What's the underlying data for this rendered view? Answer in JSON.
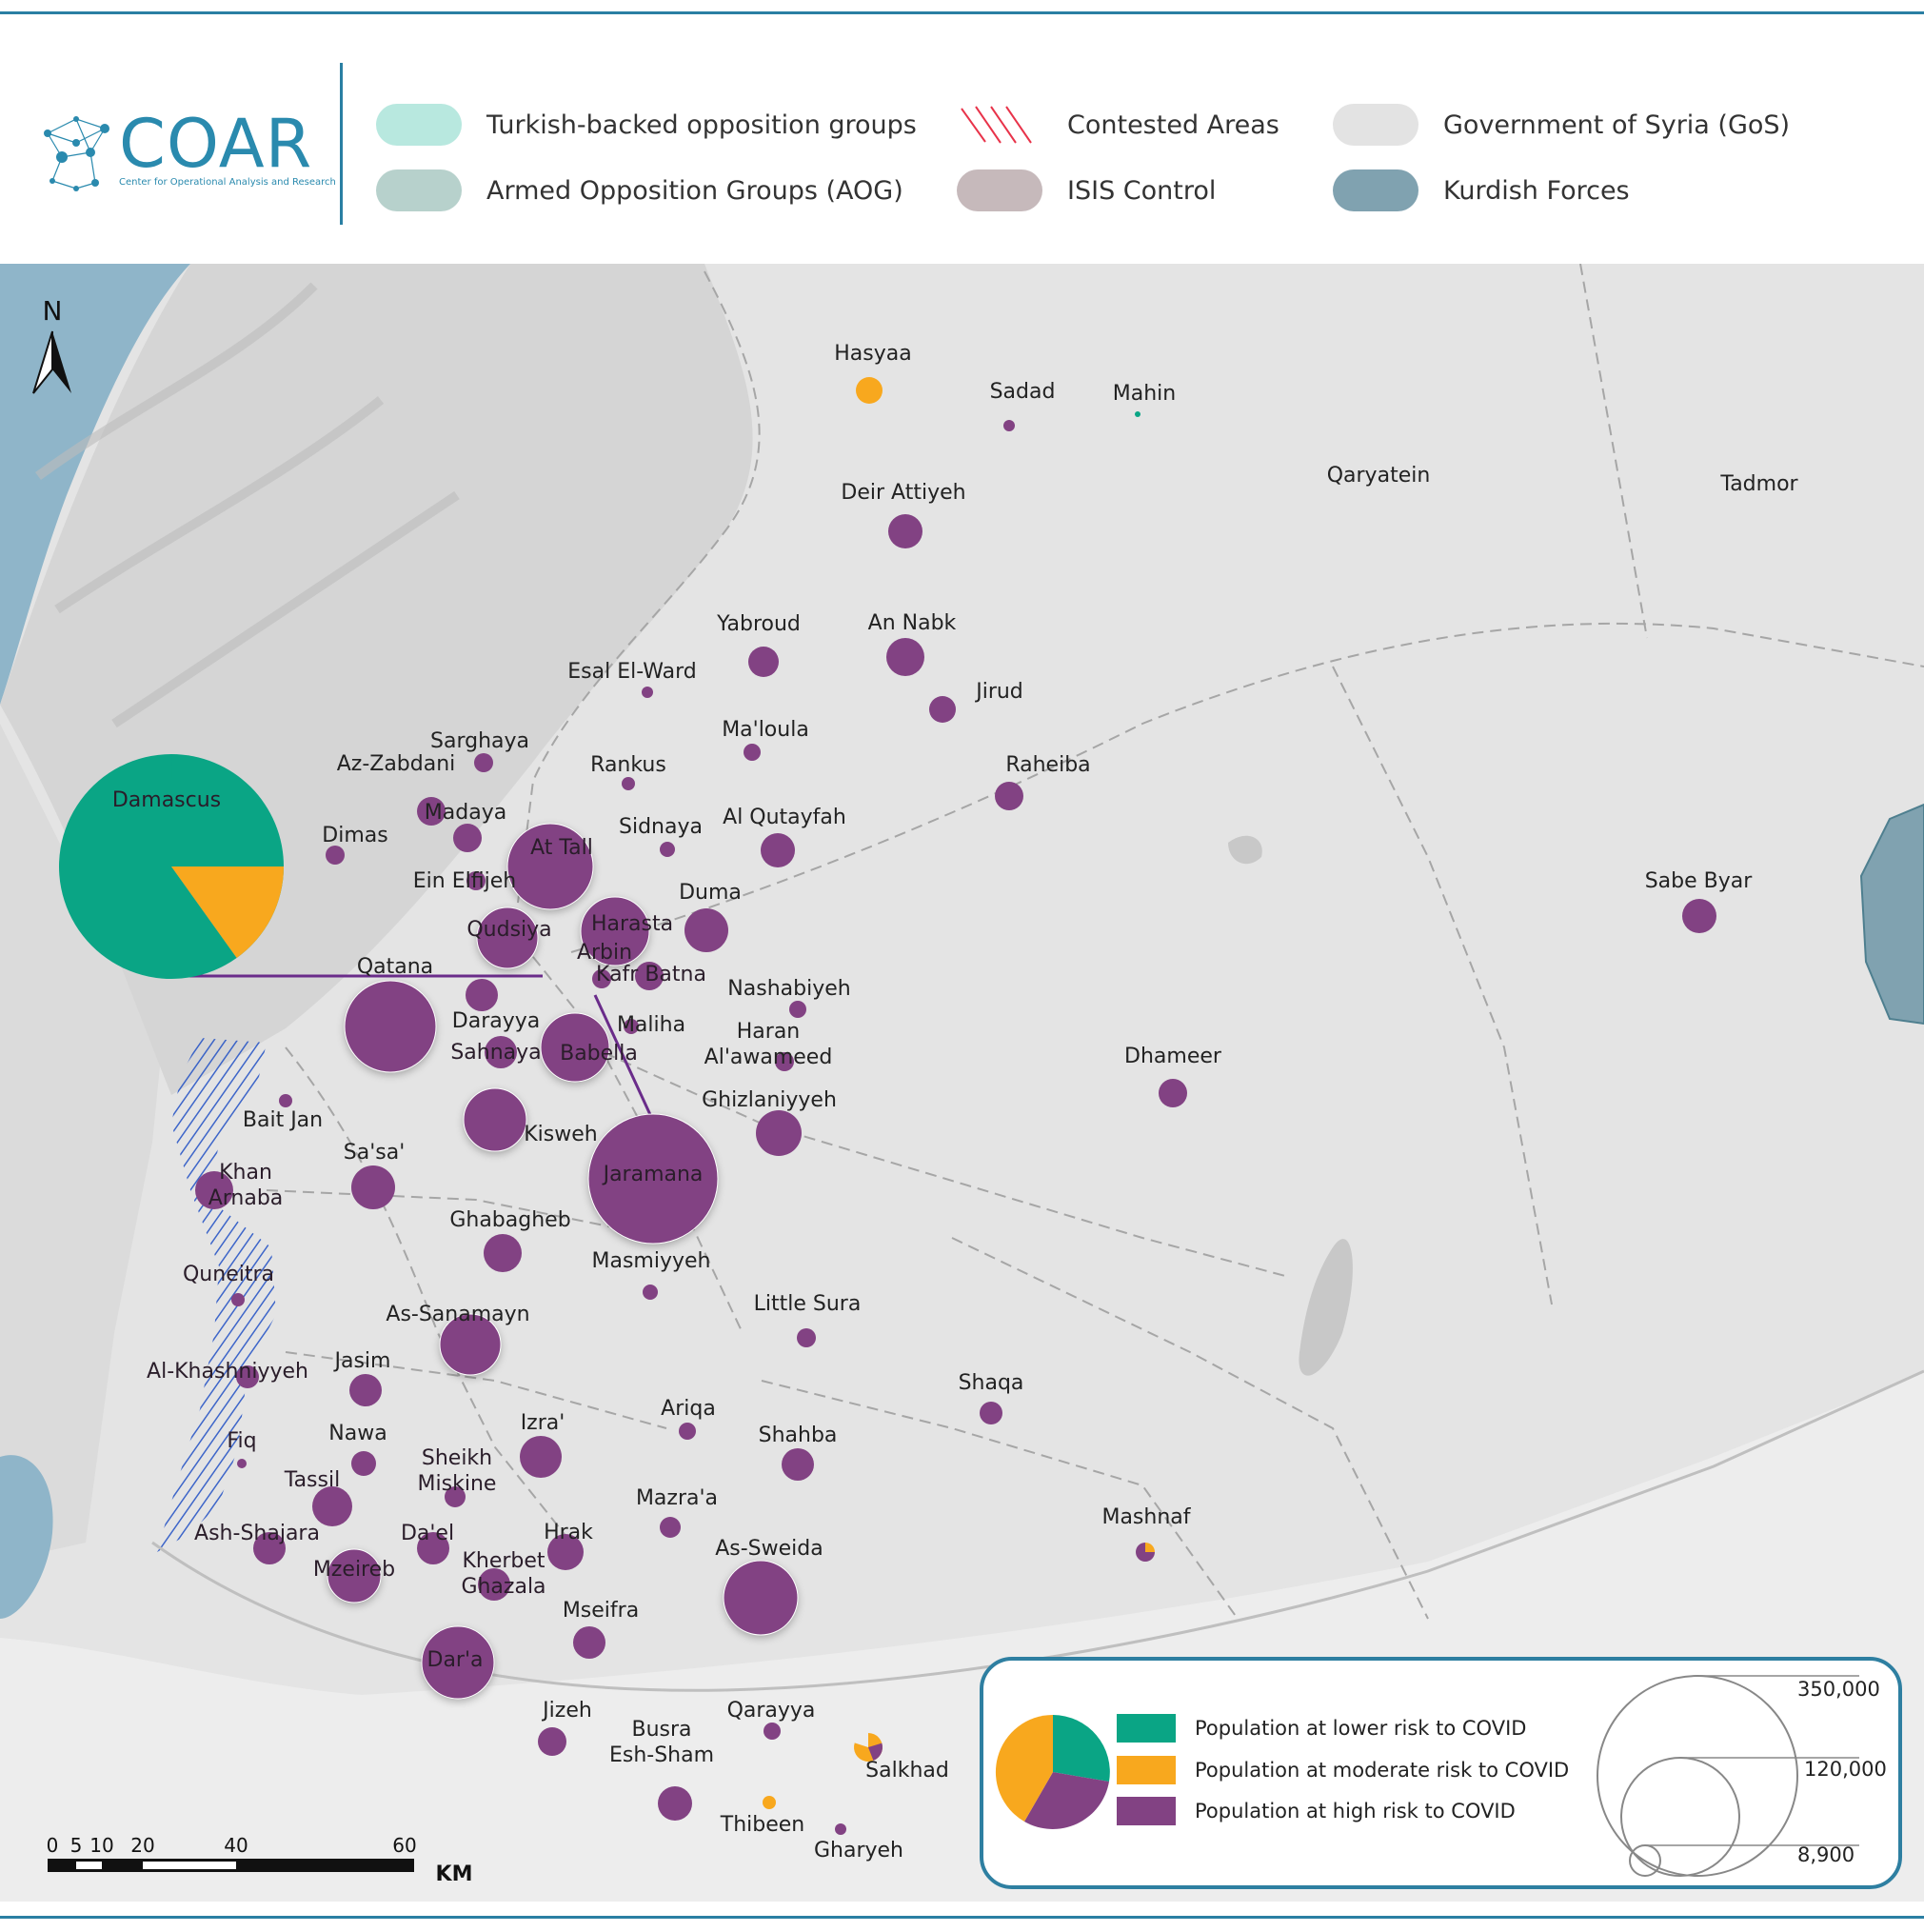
{
  "header": {
    "logo_text": "COAR",
    "logo_subtitle": "Center for Operational Analysis and Research",
    "legend": [
      {
        "label": "Turkish-backed opposition groups",
        "color": "#b8e8df"
      },
      {
        "label": "Armed Opposition Groups (AOG)",
        "color": "#b7d1cc"
      },
      {
        "label": "Contested Areas",
        "color": "#e8334a"
      },
      {
        "label": "ISIS Control",
        "color": "#c6b9bb"
      },
      {
        "label": "Government of Syria (GoS)",
        "color": "#e3e3e3"
      },
      {
        "label": "Kurdish Forces",
        "color": "#80a2b0"
      }
    ]
  },
  "map": {
    "north_label": "N",
    "scale": {
      "ticks": [
        "0",
        "5",
        "10",
        "20",
        "40",
        "60"
      ],
      "unit": "KM"
    },
    "unmarked_labels": [
      "Hasyaa",
      "Mahin",
      "Qaryatein",
      "Tadmor"
    ],
    "places": [
      {
        "name": "Damascus",
        "risk": "pie"
      },
      {
        "name": "Hasyaa",
        "risk": "moderate"
      },
      {
        "name": "Sadad",
        "risk": "high"
      },
      {
        "name": "Mahin",
        "risk": "lower"
      },
      {
        "name": "Deir Attiyeh",
        "risk": "high"
      },
      {
        "name": "Qaryatein",
        "risk": "none"
      },
      {
        "name": "Tadmor",
        "risk": "none"
      },
      {
        "name": "Yabroud",
        "risk": "high"
      },
      {
        "name": "An Nabk",
        "risk": "high"
      },
      {
        "name": "Esal El-Ward",
        "risk": "high"
      },
      {
        "name": "Jirud",
        "risk": "high"
      },
      {
        "name": "Ma'loula",
        "risk": "high"
      },
      {
        "name": "Sarghaya",
        "risk": "high"
      },
      {
        "name": "Az-Zabdani",
        "risk": "high"
      },
      {
        "name": "Rankus",
        "risk": "high"
      },
      {
        "name": "Raheiba",
        "risk": "high"
      },
      {
        "name": "Madaya",
        "risk": "high"
      },
      {
        "name": "Dimas",
        "risk": "high"
      },
      {
        "name": "At Tall",
        "risk": "high"
      },
      {
        "name": "Sidnaya",
        "risk": "high"
      },
      {
        "name": "Al Qutayfah",
        "risk": "high"
      },
      {
        "name": "Ein Elfijeh",
        "risk": "high"
      },
      {
        "name": "Duma",
        "risk": "high"
      },
      {
        "name": "Sabe Byar",
        "risk": "high"
      },
      {
        "name": "Qudsiya",
        "risk": "high"
      },
      {
        "name": "Harasta",
        "risk": "high"
      },
      {
        "name": "Arbin",
        "risk": "high"
      },
      {
        "name": "Kafr Batna",
        "risk": "high"
      },
      {
        "name": "Qatana",
        "risk": "high"
      },
      {
        "name": "Nashabiyeh",
        "risk": "high"
      },
      {
        "name": "Darayya",
        "risk": "high"
      },
      {
        "name": "Maliha",
        "risk": "high"
      },
      {
        "name": "Sahnaya",
        "risk": "high"
      },
      {
        "name": "Babella",
        "risk": "high"
      },
      {
        "name": "Haran Al'awameed",
        "risk": "high"
      },
      {
        "name": "Dhameer",
        "risk": "high"
      },
      {
        "name": "Ghizlaniyyeh",
        "risk": "high"
      },
      {
        "name": "Bait Jan",
        "risk": "high"
      },
      {
        "name": "Kisweh",
        "risk": "high"
      },
      {
        "name": "Sa'sa'",
        "risk": "high"
      },
      {
        "name": "Jaramana",
        "risk": "high"
      },
      {
        "name": "Khan Arnaba",
        "risk": "high"
      },
      {
        "name": "Ghabagheb",
        "risk": "high"
      },
      {
        "name": "Quneitra",
        "risk": "high"
      },
      {
        "name": "Masmiyyeh",
        "risk": "high"
      },
      {
        "name": "Little Sura",
        "risk": "high"
      },
      {
        "name": "As-Sanamayn",
        "risk": "high"
      },
      {
        "name": "Jasim",
        "risk": "high"
      },
      {
        "name": "Al-Khashniyyeh",
        "risk": "high"
      },
      {
        "name": "Shaqa",
        "risk": "high"
      },
      {
        "name": "Ariqa",
        "risk": "high"
      },
      {
        "name": "Izra'",
        "risk": "high"
      },
      {
        "name": "Nawa",
        "risk": "high"
      },
      {
        "name": "Fiq",
        "risk": "high"
      },
      {
        "name": "Shahba",
        "risk": "high"
      },
      {
        "name": "Sheikh Miskine",
        "risk": "high"
      },
      {
        "name": "Tassil",
        "risk": "high"
      },
      {
        "name": "Mazra'a",
        "risk": "high"
      },
      {
        "name": "Mashnaf",
        "risk": "pie"
      },
      {
        "name": "Ash-Shajara",
        "risk": "high"
      },
      {
        "name": "Da'el",
        "risk": "high"
      },
      {
        "name": "Hrak",
        "risk": "high"
      },
      {
        "name": "As-Sweida",
        "risk": "high"
      },
      {
        "name": "Mzeireb",
        "risk": "high"
      },
      {
        "name": "Kherbet Ghazala",
        "risk": "high"
      },
      {
        "name": "Mseifra",
        "risk": "high"
      },
      {
        "name": "Dar'a",
        "risk": "high"
      },
      {
        "name": "Jizeh",
        "risk": "high"
      },
      {
        "name": "Qarayya",
        "risk": "high"
      },
      {
        "name": "Busra Esh-Sham",
        "risk": "high"
      },
      {
        "name": "Salkhad",
        "risk": "pie"
      },
      {
        "name": "Thibeen",
        "risk": "moderate"
      },
      {
        "name": "Gharyeh",
        "risk": "high"
      }
    ]
  },
  "map_legend": {
    "risk_items": [
      {
        "label": "Population at lower risk to COVID",
        "color": "#0aa585"
      },
      {
        "label": "Population at moderate risk to COVID",
        "color": "#f8a81e"
      },
      {
        "label": "Population at high risk to COVID",
        "color": "#824283"
      }
    ],
    "sizes": [
      "350,000",
      "120,000",
      "8,900"
    ]
  },
  "colors": {
    "lower": "#0aa585",
    "moderate": "#f8a81e",
    "high": "#824283",
    "water": "#8fb5c9",
    "land": "#e4e4e4",
    "rule": "#2a7fa3"
  }
}
